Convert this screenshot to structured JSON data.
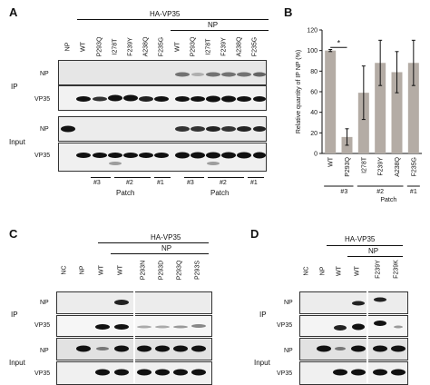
{
  "panels": {
    "A": "A",
    "B": "B",
    "C": "C",
    "D": "D"
  },
  "panelA": {
    "ha_label": "HA-VP35",
    "np_label": "NP",
    "lanes": [
      "NP",
      "WT",
      "P293Q",
      "I278T",
      "F239Y",
      "A238Q",
      "F235G",
      "WT",
      "P293Q",
      "I278T",
      "F239Y",
      "A238Q",
      "F235G"
    ],
    "ip_label": "IP",
    "input_label": "Input",
    "row_labels": [
      "NP",
      "VP35",
      "NP",
      "VP35"
    ],
    "groups": [
      "#3",
      "#2",
      "#1",
      "#3",
      "#2",
      "#1"
    ],
    "patch": [
      "Patch",
      "Patch"
    ]
  },
  "panelC": {
    "ha_label": "HA-VP35",
    "np_label": "NP",
    "lanes": [
      "NC",
      "NP",
      "WT",
      "WT",
      "P293N",
      "P293D",
      "P293Q",
      "P293S"
    ],
    "ip_label": "IP",
    "input_label": "Input",
    "row_labels": [
      "NP",
      "VP35",
      "NP",
      "VP35"
    ]
  },
  "panelD": {
    "ha_label": "HA-VP35",
    "np_label": "NP",
    "lanes": [
      "NC",
      "NP",
      "WT",
      "WT",
      "F239Y",
      "F239K"
    ],
    "ip_label": "IP",
    "input_label": "Input",
    "row_labels": [
      "NP",
      "VP35",
      "NP",
      "VP35"
    ]
  },
  "chart_data": {
    "type": "bar",
    "categories": [
      "WT",
      "P293Q",
      "I278T",
      "F239Y",
      "A238Q",
      "F235G"
    ],
    "values": [
      100,
      16,
      59,
      88,
      79,
      88
    ],
    "errors": [
      1,
      8,
      26,
      22,
      20,
      22
    ],
    "ylabel": "Relative quantity of IP NP (%)",
    "ylim": [
      0,
      120
    ],
    "yticks": [
      0,
      20,
      40,
      60,
      80,
      100,
      120
    ],
    "significance": "*",
    "groups": [
      "#3",
      "#2",
      "#1"
    ],
    "patch_label": "Patch",
    "bar_color": "#b4aca5"
  }
}
